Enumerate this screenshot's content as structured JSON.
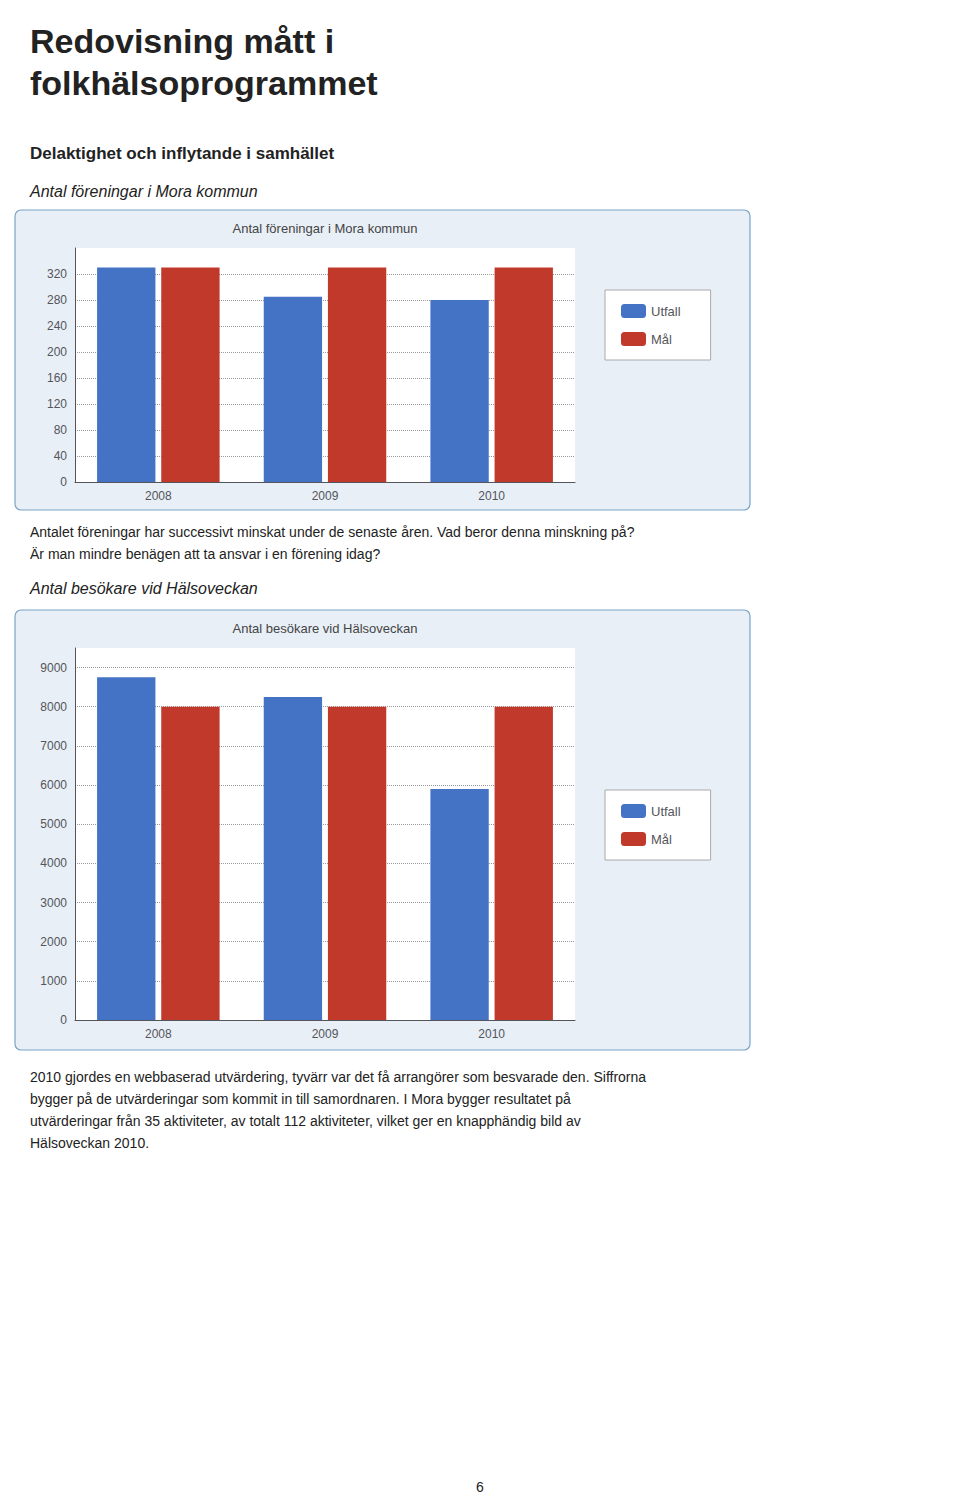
{
  "title": "Redovisning mått i\nfolkhälsoprogrammet",
  "subtitle": "Delaktighet och inflytande i samhället",
  "annotations": [
    "6"
  ],
  "chart_data": [
    {
      "type": "bar",
      "title": "Antal föreningar i Mora kommun",
      "annotations": [
        "Antal föreningar i Mora kommun",
        "Antalet föreningar har successivt minskat under de senaste åren. Vad beror denna minskning på?",
        "Är man mindre benägen att ta ansvar i en förening idag?"
      ],
      "categories": [
        "2008",
        "2009",
        "2010"
      ],
      "series": [
        {
          "name": "Utfall",
          "color": "#4472C4",
          "values": [
            330,
            285,
            280
          ]
        },
        {
          "name": "Mål",
          "color": "#C0392B",
          "values": [
            330,
            330,
            330
          ]
        }
      ],
      "ylim": [
        0,
        360
      ],
      "yticks": [
        0,
        40,
        80,
        120,
        160,
        200,
        240,
        280,
        320
      ],
      "grid": true,
      "legend": "right"
    },
    {
      "type": "bar",
      "title": "Antal besökare vid Hälsoveckan",
      "annotations": [
        "Antal besökare vid Hälsoveckan",
        "2010 gjordes en webbaserad utvärdering, tyvärr var det få arrangörer som besvarade den. Siffrorna",
        "bygger på de utvärderingar som kommit in till samordnaren. I Mora bygger resultatet på",
        "utvärderingar från 35 aktiviteter, av totalt 112 aktiviteter, vilket ger en knapphändig bild av",
        "Hälsoveckan 2010."
      ],
      "categories": [
        "2008",
        "2009",
        "2010"
      ],
      "series": [
        {
          "name": "Utfall",
          "color": "#4472C4",
          "values": [
            8750,
            8250,
            5900
          ]
        },
        {
          "name": "Mål",
          "color": "#C0392B",
          "values": [
            8000,
            8000,
            8000
          ]
        }
      ],
      "ylim": [
        0,
        9500
      ],
      "yticks": [
        0,
        1000,
        2000,
        3000,
        4000,
        5000,
        6000,
        7000,
        8000,
        9000
      ],
      "grid": true,
      "legend": "right"
    }
  ]
}
